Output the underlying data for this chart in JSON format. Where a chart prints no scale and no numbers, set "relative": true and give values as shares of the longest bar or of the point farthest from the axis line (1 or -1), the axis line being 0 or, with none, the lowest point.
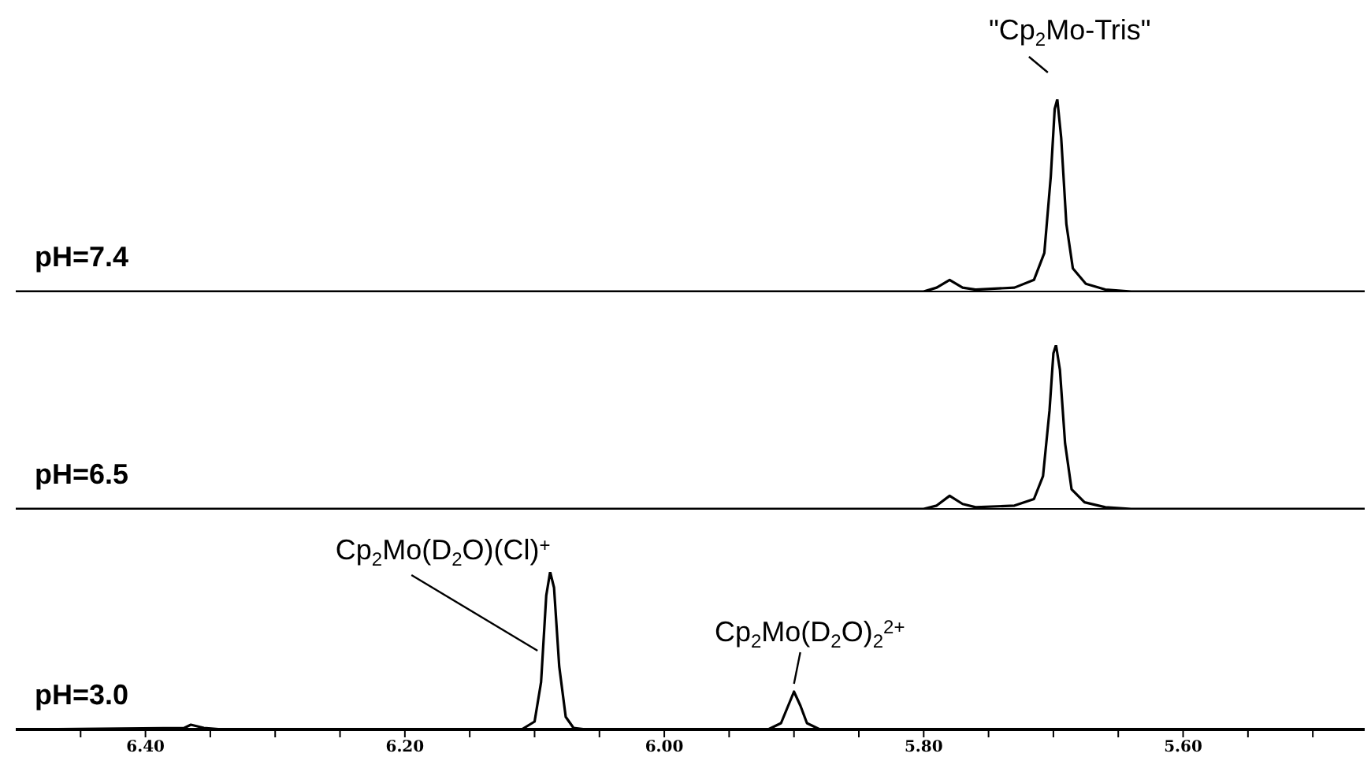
{
  "chart_data": [
    {
      "type": "line",
      "relative": true,
      "xlim": [
        6.5,
        5.46
      ],
      "tick_labels": false,
      "series": [
        {
          "name": "pH=7.4",
          "color": "#000000",
          "x": [
            6.5,
            5.8,
            5.79,
            5.78,
            5.77,
            5.76,
            5.73,
            5.715,
            5.707,
            5.702,
            5.699,
            5.697,
            5.694,
            5.69,
            5.685,
            5.675,
            5.66,
            5.64,
            5.46
          ],
          "values": [
            0,
            0,
            0.02,
            0.06,
            0.02,
            0.01,
            0.02,
            0.06,
            0.2,
            0.6,
            0.95,
            1,
            0.8,
            0.35,
            0.12,
            0.04,
            0.01,
            0,
            0
          ]
        }
      ],
      "annotations": [
        {
          "text": "\"Cp$_{2}$Mo-Tris\"",
          "x": 5.697,
          "y": 1
        }
      ]
    },
    {
      "type": "line",
      "relative": true,
      "xlim": [
        6.5,
        5.46
      ],
      "tick_labels": false,
      "series": [
        {
          "name": "pH=6.5",
          "color": "#000000",
          "x": [
            6.5,
            5.8,
            5.79,
            5.78,
            5.77,
            5.76,
            5.73,
            5.715,
            5.708,
            5.703,
            5.7,
            5.698,
            5.695,
            5.691,
            5.686,
            5.676,
            5.66,
            5.64,
            5.46
          ],
          "values": [
            0,
            0,
            0.02,
            0.08,
            0.03,
            0.01,
            0.02,
            0.06,
            0.2,
            0.6,
            0.95,
            1,
            0.85,
            0.4,
            0.12,
            0.04,
            0.01,
            0,
            0
          ]
        }
      ]
    },
    {
      "type": "line",
      "relative": true,
      "xlim": [
        6.5,
        5.46
      ],
      "tick_labels": "x",
      "xticks": [
        {
          "value": 6.45,
          "label": null
        },
        {
          "value": 6.4,
          "label": "6.40"
        },
        {
          "value": 6.35,
          "label": null
        },
        {
          "value": 6.3,
          "label": null
        },
        {
          "value": 6.25,
          "label": null
        },
        {
          "value": 6.2,
          "label": "6.20"
        },
        {
          "value": 6.15,
          "label": null
        },
        {
          "value": 6.1,
          "label": null
        },
        {
          "value": 6.05,
          "label": null
        },
        {
          "value": 6.0,
          "label": "6.00"
        },
        {
          "value": 5.95,
          "label": null
        },
        {
          "value": 5.9,
          "label": null
        },
        {
          "value": 5.85,
          "label": null
        },
        {
          "value": 5.8,
          "label": "5.80"
        },
        {
          "value": 5.75,
          "label": null
        },
        {
          "value": 5.7,
          "label": null
        },
        {
          "value": 5.65,
          "label": null
        },
        {
          "value": 5.6,
          "label": "5.60"
        },
        {
          "value": 5.55,
          "label": null
        },
        {
          "value": 5.5,
          "label": null
        }
      ],
      "series": [
        {
          "name": "pH=3.0",
          "color": "#000000",
          "x": [
            6.5,
            6.37,
            6.365,
            6.355,
            6.34,
            6.11,
            6.1,
            6.095,
            6.091,
            6.088,
            6.085,
            6.081,
            6.076,
            6.07,
            6.06,
            5.92,
            5.91,
            5.905,
            5.9,
            5.895,
            5.89,
            5.88,
            5.46
          ],
          "values": [
            0,
            0.01,
            0.03,
            0.01,
            0,
            0,
            0.05,
            0.3,
            0.85,
            1,
            0.9,
            0.4,
            0.08,
            0.01,
            0,
            0,
            0.04,
            0.14,
            0.24,
            0.15,
            0.04,
            0,
            0
          ]
        }
      ],
      "annotations": [
        {
          "text": "Cp$_{2}$Mo(D$_{2}$O)(Cl)$^{+}$",
          "x": 6.088,
          "y": 1
        },
        {
          "text": "Cp$_{2}$Mo(D$_{2}$O)$_{2}$$^{2+}$",
          "x": 5.9,
          "y": 0.24
        }
      ]
    }
  ]
}
